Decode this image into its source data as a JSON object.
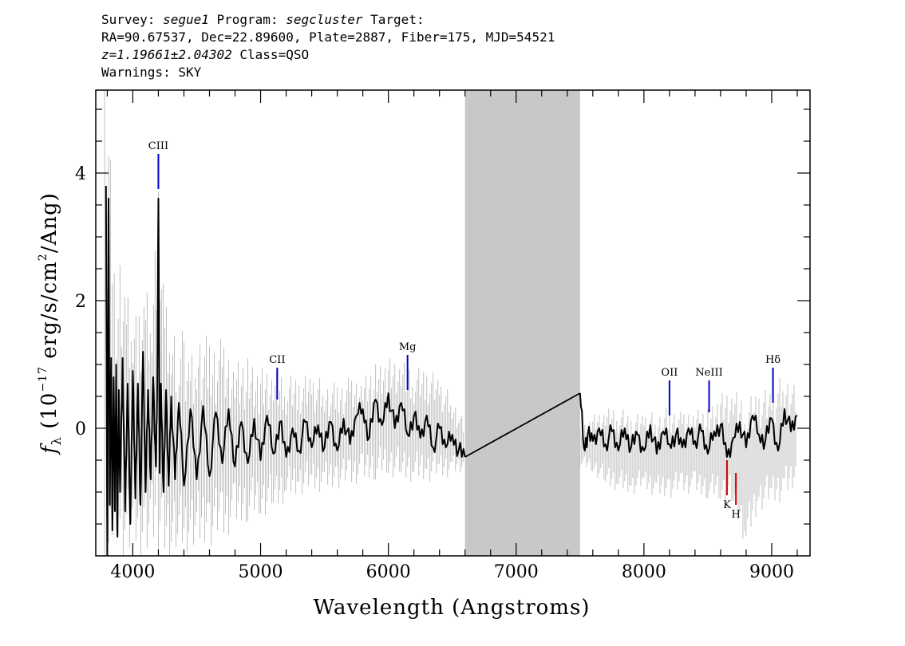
{
  "header": {
    "line1": {
      "survey_label": "Survey: ",
      "survey": "segue1",
      "program_label": " Program: ",
      "program": "segcluster",
      "target_label": " Target:"
    },
    "line2": "RA=90.67537, Dec=22.89600, Plate=2887, Fiber=175, MJD=54521",
    "line3": {
      "z": "z=1.19661±2.04302",
      "class": " Class=QSO"
    },
    "line4": "Warnings: SKY"
  },
  "colors": {
    "noise": "#c0c0c0",
    "masked_region": "#c8c8c8",
    "flux": "#000000",
    "emission": "#0000cc",
    "absorption": "#cc0000"
  },
  "chart_data": {
    "type": "line",
    "xlabel": "Wavelength (Angstroms)",
    "ylabel": "f_λ (10^-17 erg/s/cm^2/Ang)",
    "ylabel_parts": {
      "f": "f",
      "lambda": "λ",
      "pre": " (10",
      "exp1": "−17",
      "mid": " erg/s/cm",
      "exp2": "2",
      "post": "/Ang)"
    },
    "xlim": [
      3710,
      9300
    ],
    "ylim": [
      -2.0,
      5.3
    ],
    "xticks": [
      4000,
      5000,
      6000,
      7000,
      8000,
      9000
    ],
    "yticks": [
      0,
      2,
      4
    ],
    "masked_region": [
      6600,
      7500
    ],
    "interpolated_segment": {
      "x": [
        6600,
        7500
      ],
      "y": [
        -0.45,
        0.55
      ]
    },
    "emission_lines": [
      {
        "name": "CIII",
        "x": 4200,
        "y_top": 4.3,
        "y_bottom": 3.75
      },
      {
        "name": "CII",
        "x": 5130,
        "y_top": 0.95,
        "y_bottom": 0.45
      },
      {
        "name": "Mg",
        "x": 6150,
        "y_top": 1.15,
        "y_bottom": 0.6
      },
      {
        "name": "OII",
        "x": 8200,
        "y_top": 0.75,
        "y_bottom": 0.2
      },
      {
        "name": "NeIII",
        "x": 8510,
        "y_top": 0.75,
        "y_bottom": 0.25
      },
      {
        "name": "Hδ",
        "x": 9010,
        "y_top": 0.95,
        "y_bottom": 0.4
      }
    ],
    "absorption_lines": [
      {
        "name": "K",
        "x": 8650,
        "y_top": -0.5,
        "y_bottom": -1.05
      },
      {
        "name": "H",
        "x": 8720,
        "y_top": -0.7,
        "y_bottom": -1.2
      }
    ],
    "series": [
      {
        "role": "noise",
        "x": [
          3780,
          3810,
          3840,
          3870,
          3900,
          3950,
          4000,
          4050,
          4100,
          4150,
          4200,
          4250,
          4300,
          4350,
          4400,
          4450,
          4500,
          4600,
          4700,
          4800,
          4900,
          5000,
          5100,
          5200,
          5300,
          5400,
          5500,
          5600,
          5700,
          5800,
          5900,
          6000,
          6100,
          6200,
          6300,
          6400,
          6500,
          6600
        ],
        "upper": [
          5.3,
          5.0,
          3.4,
          2.5,
          2.9,
          2.4,
          2.2,
          1.9,
          2.3,
          2.2,
          3.7,
          2.0,
          1.6,
          1.3,
          1.6,
          1.3,
          1.6,
          1.4,
          1.4,
          1.15,
          1.1,
          0.95,
          0.9,
          0.85,
          0.8,
          0.85,
          0.75,
          0.7,
          0.8,
          0.85,
          1.0,
          1.1,
          1.05,
          0.95,
          0.95,
          0.8,
          0.5,
          0.1
        ],
        "lower": [
          -2.0,
          -2.0,
          -2.0,
          -2.0,
          -2.0,
          -2.0,
          -2.0,
          -2.0,
          -2.0,
          -2.0,
          -1.9,
          -2.0,
          -2.0,
          -1.95,
          -2.0,
          -1.9,
          -1.95,
          -1.85,
          -1.75,
          -1.6,
          -1.45,
          -1.4,
          -1.3,
          -1.15,
          -1.05,
          -1.0,
          -1.0,
          -0.95,
          -0.9,
          -0.85,
          -0.8,
          -0.75,
          -0.8,
          -0.85,
          -0.85,
          -0.8,
          -0.75,
          -0.7
        ]
      },
      {
        "role": "noise",
        "x": [
          7500,
          7600,
          7700,
          7800,
          7900,
          8000,
          8100,
          8200,
          8300,
          8400,
          8500,
          8600,
          8700,
          8800,
          8900,
          9000,
          9100,
          9200
        ],
        "upper": [
          0.0,
          0.2,
          0.3,
          0.35,
          0.2,
          0.25,
          0.25,
          0.35,
          0.25,
          0.35,
          0.3,
          0.55,
          0.6,
          0.45,
          0.6,
          0.6,
          0.9,
          0.6
        ],
        "lower": [
          -0.6,
          -0.7,
          -0.9,
          -1.0,
          -1.05,
          -0.95,
          -1.1,
          -1.1,
          -1.0,
          -1.05,
          -1.1,
          -1.15,
          -1.25,
          -1.9,
          -1.3,
          -1.2,
          -1.15,
          -0.9
        ]
      },
      {
        "role": "flux",
        "x": [
          3790,
          3800,
          3810,
          3820,
          3830,
          3840,
          3850,
          3860,
          3870,
          3880,
          3890,
          3900,
          3920,
          3940,
          3960,
          3980,
          4000,
          4020,
          4040,
          4060,
          4080,
          4100,
          4120,
          4140,
          4160,
          4180,
          4190,
          4200,
          4210,
          4220,
          4240,
          4260,
          4280,
          4300,
          4330,
          4360,
          4400,
          4450,
          4500,
          4550,
          4600,
          4650,
          4700,
          4750,
          4800,
          4850,
          4900,
          4950,
          5000,
          5050,
          5100,
          5150,
          5200,
          5250,
          5300,
          5350,
          5400,
          5450,
          5500,
          5550,
          5600,
          5650,
          5700,
          5750,
          5800,
          5850,
          5900,
          5950,
          6000,
          6050,
          6100,
          6150,
          6200,
          6250,
          6300,
          6350,
          6400,
          6450,
          6500,
          6550,
          6600
        ],
        "y": [
          3.8,
          -2.0,
          3.6,
          -1.2,
          1.1,
          -1.6,
          0.8,
          -1.3,
          1.0,
          -1.7,
          0.6,
          -1.0,
          1.1,
          -1.3,
          0.7,
          -1.5,
          0.9,
          -1.1,
          0.7,
          -1.2,
          1.2,
          -1.0,
          0.6,
          -0.8,
          0.8,
          -0.6,
          0.5,
          3.6,
          -0.7,
          0.7,
          -1.0,
          0.6,
          -0.9,
          0.5,
          -0.8,
          0.4,
          -0.9,
          0.3,
          -0.8,
          0.35,
          -0.75,
          0.25,
          -0.55,
          0.3,
          -0.6,
          0.1,
          -0.55,
          0.15,
          -0.5,
          0.2,
          -0.4,
          0.1,
          -0.45,
          0.0,
          -0.35,
          0.1,
          -0.3,
          0.05,
          -0.3,
          0.1,
          -0.35,
          0.15,
          -0.25,
          0.2,
          0.3,
          -0.15,
          0.45,
          0.05,
          0.55,
          0.0,
          0.4,
          -0.1,
          0.2,
          -0.15,
          0.2,
          -0.3,
          0.0,
          -0.3,
          -0.1,
          -0.35,
          -0.45
        ]
      },
      {
        "role": "flux",
        "x": [
          7500,
          7530,
          7560,
          7600,
          7650,
          7700,
          7750,
          7800,
          7850,
          7900,
          7950,
          8000,
          8050,
          8100,
          8150,
          8200,
          8250,
          8300,
          8350,
          8400,
          8450,
          8500,
          8550,
          8600,
          8650,
          8700,
          8750,
          8800,
          8850,
          8900,
          8950,
          9000,
          9050,
          9100,
          9150,
          9200
        ],
        "y": [
          0.55,
          -0.3,
          -0.1,
          -0.2,
          0.0,
          -0.25,
          -0.05,
          -0.35,
          0.0,
          -0.3,
          -0.1,
          -0.35,
          0.05,
          -0.4,
          -0.05,
          -0.25,
          -0.1,
          -0.3,
          0.0,
          -0.2,
          -0.05,
          -0.4,
          -0.05,
          0.05,
          -0.45,
          -0.15,
          0.1,
          -0.3,
          0.2,
          -0.1,
          -0.2,
          0.15,
          -0.35,
          0.3,
          -0.05,
          0.2
        ]
      }
    ]
  }
}
